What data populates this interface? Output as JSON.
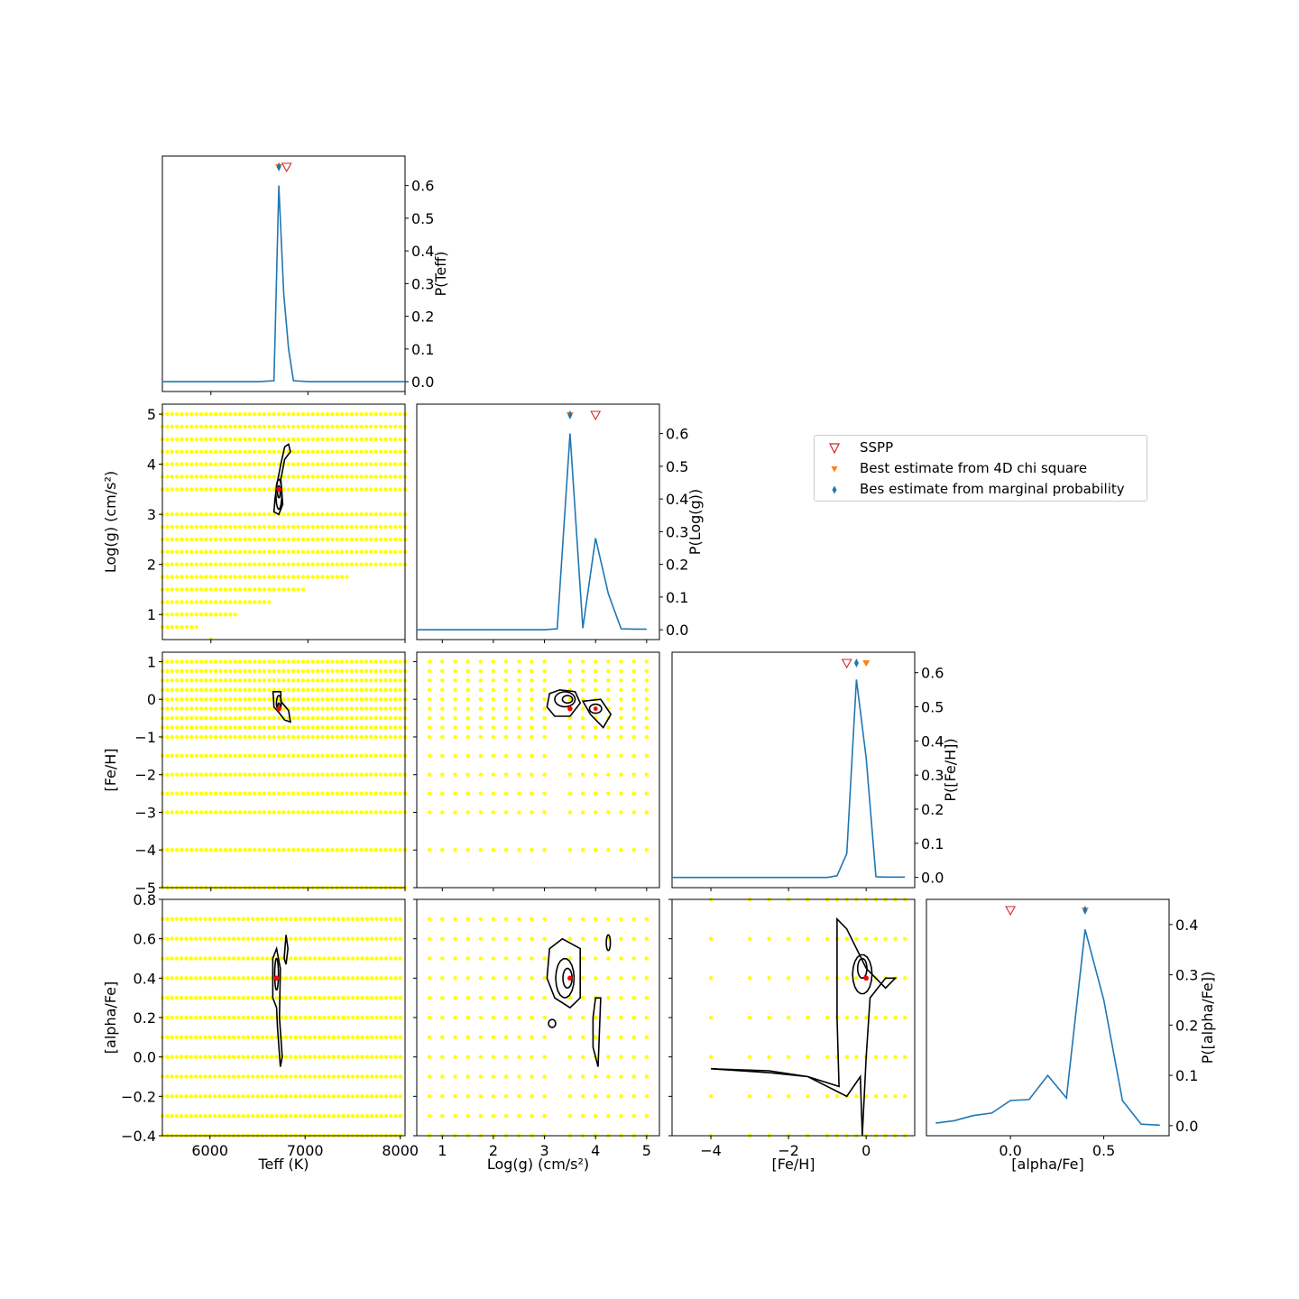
{
  "colors": {
    "line": "#1f77b4",
    "grid_points": "#ffff00",
    "sspp": "#d62728",
    "chi2": "#ff7f0e",
    "marginal": "#1f77b4",
    "contour": "#000000",
    "best_point": "#ff0000"
  },
  "legend": {
    "placement": "right, between rows 2 and 3",
    "items": [
      {
        "label": "SSPP",
        "marker": "open-triangle-down",
        "color": "#d62728"
      },
      {
        "label": "Best estimate from 4D chi square",
        "marker": "triangle-down",
        "color": "#ff7f0e"
      },
      {
        "label": "Bes estimate from marginal probability",
        "marker": "thin-diamond",
        "color": "#1f77b4"
      }
    ]
  },
  "chart_data": [
    {
      "type": "line",
      "panel": "marginal-teff",
      "ylabel": "P(Teff)",
      "xlim": [
        5500,
        8000
      ],
      "ylim": [
        -0.03,
        0.69
      ],
      "yticks": [
        "0.0",
        "0.1",
        "0.2",
        "0.3",
        "0.4",
        "0.5",
        "0.6"
      ],
      "x": [
        5500,
        6500,
        6650,
        6700,
        6750,
        6800,
        6850,
        7000,
        7500,
        8000
      ],
      "y": [
        0.0,
        0.0,
        0.003,
        0.6,
        0.27,
        0.1,
        0.003,
        0.0,
        0.0,
        0.0
      ],
      "markers": {
        "sspp": 6780,
        "chi2": 6700,
        "marginal": 6700
      }
    },
    {
      "type": "line",
      "panel": "marginal-logg",
      "ylabel": "P(Log(g))",
      "xlim": [
        0.5,
        5.25
      ],
      "ylim": [
        -0.03,
        0.69
      ],
      "yticks": [
        "0.0",
        "0.1",
        "0.2",
        "0.3",
        "0.4",
        "0.5",
        "0.6"
      ],
      "x": [
        0.5,
        1.0,
        1.5,
        2.0,
        2.5,
        3.0,
        3.25,
        3.5,
        3.75,
        4.0,
        4.25,
        4.5,
        4.75,
        5.0
      ],
      "y": [
        0.0,
        0.0,
        0.0,
        0.0,
        0.0,
        0.0,
        0.003,
        0.6,
        0.005,
        0.28,
        0.11,
        0.003,
        0.002,
        0.002
      ],
      "markers": {
        "sspp": 4.0,
        "chi2": 3.5,
        "marginal": 3.5
      }
    },
    {
      "type": "line",
      "panel": "marginal-feh",
      "ylabel": "P([Fe/H])",
      "xlim": [
        -5.0,
        1.25
      ],
      "ylim": [
        -0.03,
        0.66
      ],
      "yticks": [
        "0.0",
        "0.1",
        "0.2",
        "0.3",
        "0.4",
        "0.5",
        "0.6"
      ],
      "x": [
        -5.0,
        -4.0,
        -3.0,
        -2.0,
        -1.0,
        -0.75,
        -0.5,
        -0.25,
        0.0,
        0.25,
        0.5,
        0.75,
        1.0
      ],
      "y": [
        0.0,
        0.0,
        0.0,
        0.0,
        0.0,
        0.005,
        0.07,
        0.58,
        0.35,
        0.002,
        0.001,
        0.001,
        0.001
      ],
      "markers": {
        "sspp": -0.5,
        "chi2": 0.0,
        "marginal": -0.25
      }
    },
    {
      "type": "line",
      "panel": "marginal-alpha",
      "xlabel": "[alpha/Fe]",
      "ylabel": "P([alpha/Fe])",
      "xlim": [
        -0.45,
        0.85
      ],
      "xticks": [
        "0.0",
        "0.5"
      ],
      "ylim": [
        -0.02,
        0.45
      ],
      "yticks": [
        "0.0",
        "0.1",
        "0.2",
        "0.3",
        "0.4"
      ],
      "x": [
        -0.4,
        -0.3,
        -0.2,
        -0.1,
        0.0,
        0.1,
        0.2,
        0.3,
        0.4,
        0.5,
        0.6,
        0.7,
        0.8
      ],
      "y": [
        0.005,
        0.01,
        0.02,
        0.025,
        0.05,
        0.052,
        0.1,
        0.055,
        0.39,
        0.25,
        0.05,
        0.003,
        0.001
      ],
      "markers": {
        "sspp": 0.0,
        "chi2": 0.4,
        "marginal": 0.4
      }
    },
    {
      "type": "scatter",
      "panel": "teff-vs-logg",
      "ylabel": "Log(g) (cm/s²)",
      "xlim": [
        5500,
        8000
      ],
      "ylim": [
        0.5,
        5.2
      ],
      "yticks": [
        "1",
        "2",
        "3",
        "4",
        "5"
      ],
      "x_grid": "5500–8000 step 50",
      "y_grid": [
        0.75,
        1.0,
        1.25,
        1.5,
        1.75,
        2.0,
        2.25,
        2.5,
        2.75,
        3.0,
        3.5,
        3.75,
        4.0,
        4.25,
        4.5,
        4.75,
        5.0
      ],
      "best_point": [
        6700,
        3.5
      ]
    },
    {
      "type": "scatter",
      "panel": "teff-vs-feh",
      "ylabel": "[Fe/H]",
      "xlim": [
        5500,
        8000
      ],
      "ylim": [
        -5.0,
        1.25
      ],
      "yticks": [
        "1",
        "0",
        "−1",
        "−2",
        "−3",
        "−4",
        "−5"
      ],
      "y_grid": [
        -5.0,
        -4.0,
        -3.0,
        -2.5,
        -2.0,
        -1.5,
        -1.0,
        -0.75,
        -0.5,
        -0.25,
        0.0,
        0.25,
        0.5,
        0.75,
        1.0
      ],
      "best_point": [
        6700,
        -0.25
      ]
    },
    {
      "type": "scatter",
      "panel": "teff-vs-alpha",
      "xlabel": "Teff (K)",
      "ylabel": "[alpha/Fe]",
      "xlim": [
        5500,
        8050
      ],
      "xticks": [
        "6000",
        "7000",
        "8000"
      ],
      "ylim": [
        -0.4,
        0.8
      ],
      "yticks": [
        "0.8",
        "0.6",
        "0.4",
        "0.2",
        "0.0",
        "−0.2",
        "−0.4"
      ],
      "y_grid": [
        -0.4,
        -0.3,
        -0.2,
        -0.1,
        0.0,
        0.1,
        0.2,
        0.3,
        0.4,
        0.5,
        0.6,
        0.7
      ],
      "best_point": [
        6700,
        0.4
      ]
    },
    {
      "type": "scatter",
      "panel": "logg-vs-feh",
      "xlim": [
        0.5,
        5.25
      ],
      "ylim": [
        -5.0,
        1.25
      ],
      "x_grid": [
        0.75,
        1.0,
        1.25,
        1.5,
        1.75,
        2.0,
        2.25,
        2.5,
        2.75,
        3.0,
        3.5,
        3.75,
        4.0,
        4.25,
        4.5,
        4.75,
        5.0
      ],
      "y_grid": [
        -4.0,
        -3.0,
        -2.5,
        -2.0,
        -1.5,
        -1.0,
        -0.75,
        -0.5,
        -0.25,
        0.0,
        0.25,
        0.5,
        0.75,
        1.0
      ],
      "best_point": [
        3.5,
        -0.25
      ]
    },
    {
      "type": "scatter",
      "panel": "logg-vs-alpha",
      "xlabel": "Log(g) (cm/s²)",
      "xlim": [
        0.5,
        5.25
      ],
      "xticks": [
        "1",
        "2",
        "3",
        "4",
        "5"
      ],
      "ylim": [
        -0.4,
        0.8
      ],
      "x_grid": [
        0.75,
        1.0,
        1.25,
        1.5,
        1.75,
        2.0,
        2.25,
        2.5,
        2.75,
        3.0,
        3.5,
        3.75,
        4.0,
        4.25,
        4.5,
        4.75,
        5.0
      ],
      "y_grid": [
        -0.4,
        -0.3,
        -0.2,
        -0.1,
        0.0,
        0.1,
        0.2,
        0.3,
        0.4,
        0.5,
        0.6,
        0.7
      ],
      "best_point": [
        3.5,
        0.4
      ]
    },
    {
      "type": "scatter",
      "panel": "feh-vs-alpha",
      "xlabel": "[Fe/H]",
      "xlim": [
        -5.0,
        1.25
      ],
      "xticks": [
        "−4",
        "−2",
        "0"
      ],
      "ylim": [
        -0.4,
        0.8
      ],
      "x_grid": [
        -4.0,
        -3.0,
        -2.5,
        -2.0,
        -1.5,
        -1.0,
        -0.75,
        -0.5,
        -0.25,
        0.0,
        0.25,
        0.5,
        0.75,
        1.0
      ],
      "y_grid": [
        -0.4,
        -0.2,
        0.0,
        0.2,
        0.4,
        0.6,
        0.8
      ],
      "best_point": [
        0.0,
        0.4
      ]
    }
  ]
}
